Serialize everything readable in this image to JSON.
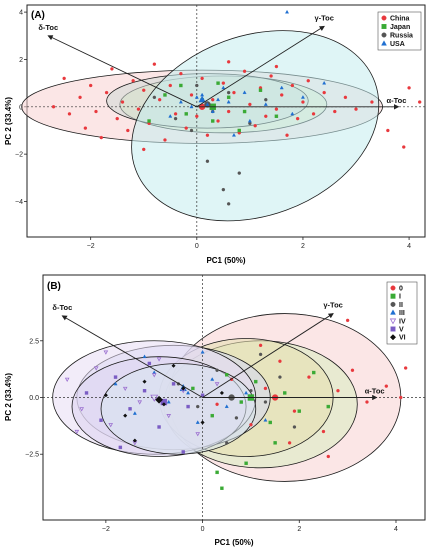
{
  "chart_data": [
    {
      "type": "scatter",
      "panel_label": "(A)",
      "xlabel": "PC1 (50%)",
      "ylabel": "PC 2 (33.4%)",
      "xlim": [
        -3.2,
        4.3
      ],
      "ylim": [
        -5.5,
        4.3
      ],
      "x_ticks": [
        -2,
        0,
        2,
        4
      ],
      "y_ticks": [
        -4,
        -2,
        0,
        2,
        4
      ],
      "x_tick_labels": [
        "−2",
        "0",
        "2",
        "4"
      ],
      "y_tick_labels": [
        "−4",
        "−2",
        "0",
        "2",
        "4"
      ],
      "grid": false,
      "legend_position": "top-right",
      "series": [
        {
          "name": "China",
          "color": "#e8383d",
          "marker": "circle",
          "fill": "#f8d2d2",
          "ellipse": {
            "cx": 0.1,
            "cy": 0.0,
            "rx": 3.4,
            "ry": 1.55,
            "angle": 0
          },
          "center": [
            0.1,
            0.0
          ],
          "points": [
            [
              -2.5,
              1.2
            ],
            [
              -2.4,
              -0.3
            ],
            [
              -2.2,
              0.4
            ],
            [
              -2.1,
              -0.9
            ],
            [
              -2.0,
              0.9
            ],
            [
              -1.9,
              -0.2
            ],
            [
              -1.8,
              -1.3
            ],
            [
              -1.7,
              0.6
            ],
            [
              -1.6,
              1.6
            ],
            [
              -1.5,
              -0.5
            ],
            [
              -1.4,
              0.2
            ],
            [
              -1.3,
              -1.0
            ],
            [
              -1.2,
              1.1
            ],
            [
              -1.1,
              -0.1
            ],
            [
              -1.0,
              0.7
            ],
            [
              -0.9,
              -0.7
            ],
            [
              -0.8,
              1.8
            ],
            [
              -0.7,
              0.3
            ],
            [
              -0.6,
              -1.4
            ],
            [
              -0.5,
              0.9
            ],
            [
              -0.4,
              -0.3
            ],
            [
              -0.3,
              1.4
            ],
            [
              -0.2,
              -0.9
            ],
            [
              -0.1,
              0.5
            ],
            [
              0.0,
              -0.4
            ],
            [
              0.1,
              1.2
            ],
            [
              0.2,
              -1.2
            ],
            [
              0.3,
              0.3
            ],
            [
              0.4,
              -0.6
            ],
            [
              0.5,
              1.0
            ],
            [
              0.6,
              -0.2
            ],
            [
              0.7,
              0.6
            ],
            [
              0.8,
              -1.1
            ],
            [
              0.9,
              1.5
            ],
            [
              1.0,
              0.1
            ],
            [
              1.1,
              -0.8
            ],
            [
              1.2,
              0.8
            ],
            [
              1.3,
              -0.4
            ],
            [
              1.4,
              1.3
            ],
            [
              1.5,
              -0.1
            ],
            [
              1.6,
              0.5
            ],
            [
              1.7,
              -1.2
            ],
            [
              1.8,
              0.9
            ],
            [
              1.9,
              -0.5
            ],
            [
              2.0,
              0.2
            ],
            [
              2.1,
              1.1
            ],
            [
              2.2,
              -0.3
            ],
            [
              2.4,
              0.6
            ],
            [
              2.6,
              -0.2
            ],
            [
              2.8,
              0.4
            ],
            [
              3.0,
              -0.1
            ],
            [
              3.3,
              0.2
            ],
            [
              3.6,
              -1.0
            ],
            [
              4.0,
              0.8
            ],
            [
              4.2,
              0.2
            ],
            [
              3.9,
              -1.7
            ],
            [
              -2.7,
              0.0
            ],
            [
              -1.0,
              -1.8
            ],
            [
              0.6,
              1.9
            ],
            [
              1.5,
              1.7
            ]
          ]
        },
        {
          "name": "Japan",
          "color": "#3aaa35",
          "marker": "square",
          "fill": "#d9ecc0",
          "ellipse": {
            "cx": 0.5,
            "cy": 0.1,
            "rx": 1.95,
            "ry": 1.2,
            "angle": 0
          },
          "center": [
            0.3,
            0.0
          ],
          "points": [
            [
              -0.6,
              0.5
            ],
            [
              -0.2,
              -0.3
            ],
            [
              0.1,
              0.3
            ],
            [
              0.3,
              -0.6
            ],
            [
              0.6,
              0.4
            ],
            [
              0.9,
              -0.2
            ],
            [
              1.2,
              0.7
            ],
            [
              1.5,
              -0.4
            ],
            [
              -0.9,
              -0.6
            ],
            [
              0.4,
              1.0
            ],
            [
              0.8,
              -1.0
            ],
            [
              -0.3,
              0.9
            ]
          ]
        },
        {
          "name": "Russia",
          "color": "#555555",
          "marker": "circle",
          "fill": "#cfd8d5",
          "ellipse": {
            "cx": 0.2,
            "cy": 0.25,
            "rx": 1.9,
            "ry": 1.15,
            "angle": 0
          },
          "center": [
            0.2,
            0.1
          ],
          "points": [
            [
              -0.8,
              0.4
            ],
            [
              -0.4,
              -0.5
            ],
            [
              0.0,
              0.9
            ],
            [
              0.3,
              -0.2
            ],
            [
              0.6,
              0.6
            ],
            [
              1.0,
              -0.7
            ],
            [
              1.3,
              0.3
            ],
            [
              -0.1,
              -1.0
            ],
            [
              0.5,
              -3.5
            ],
            [
              0.2,
              -2.3
            ],
            [
              0.6,
              -4.1
            ],
            [
              0.8,
              -2.8
            ]
          ]
        },
        {
          "name": "USA",
          "color": "#1f6fd1",
          "marker": "triangle",
          "fill": "#c5ecef",
          "ellipse": {
            "cx": 1.1,
            "cy": -0.8,
            "rx": 2.4,
            "ry": 3.8,
            "angle": 20
          },
          "center": [
            0.1,
            0.3
          ],
          "points": [
            [
              -0.3,
              0.2
            ],
            [
              0.0,
              0.4
            ],
            [
              0.2,
              0.1
            ],
            [
              0.4,
              0.3
            ],
            [
              0.1,
              0.5
            ],
            [
              -0.1,
              0.0
            ],
            [
              0.3,
              -0.2
            ],
            [
              0.6,
              0.2
            ],
            [
              0.9,
              0.6
            ],
            [
              1.3,
              0.1
            ],
            [
              1.6,
              0.8
            ],
            [
              2.0,
              0.4
            ],
            [
              2.4,
              1.0
            ],
            [
              1.0,
              -0.6
            ],
            [
              1.8,
              -0.3
            ],
            [
              0.5,
              0.8
            ],
            [
              -0.5,
              -0.4
            ],
            [
              1.7,
              4.0
            ],
            [
              0.7,
              -1.2
            ]
          ]
        }
      ],
      "loadings": [
        {
          "label": "δ-Toc",
          "x": -2.8,
          "y": 3.0
        },
        {
          "label": "γ-Toc",
          "x": 2.4,
          "y": 3.4
        },
        {
          "label": "α-Toc",
          "x": 3.8,
          "y": 0.0
        }
      ]
    },
    {
      "type": "scatter",
      "panel_label": "(B)",
      "xlabel": "PC1 (50%)",
      "ylabel": "PC 2 (33.4%)",
      "xlim": [
        -3.3,
        4.6
      ],
      "ylim": [
        -5.4,
        5.4
      ],
      "x_ticks": [
        -2,
        0,
        2,
        4
      ],
      "y_ticks": [
        -2.5,
        0,
        2.5
      ],
      "x_tick_labels": [
        "−2",
        "0",
        "2",
        "4"
      ],
      "y_tick_labels": [
        "−2.5",
        "0.0",
        "2.5"
      ],
      "grid": false,
      "legend_position": "top-right",
      "series": [
        {
          "name": "0",
          "color": "#e8383d",
          "marker": "circle",
          "fill": "#f8d2d2",
          "ellipse": {
            "cx": 1.7,
            "cy": 0.0,
            "rx": 2.4,
            "ry": 3.7,
            "angle": 0
          },
          "center": [
            1.5,
            0.0
          ],
          "points": [
            [
              0.3,
              -0.3
            ],
            [
              0.6,
              0.8
            ],
            [
              1.0,
              -1.2
            ],
            [
              1.3,
              0.4
            ],
            [
              1.6,
              1.6
            ],
            [
              1.9,
              -0.6
            ],
            [
              2.2,
              0.9
            ],
            [
              2.5,
              -1.5
            ],
            [
              2.8,
              0.3
            ],
            [
              3.1,
              1.2
            ],
            [
              3.4,
              -0.2
            ],
            [
              3.8,
              0.5
            ],
            [
              4.1,
              0.0
            ],
            [
              4.2,
              1.3
            ],
            [
              3.0,
              3.4
            ],
            [
              2.6,
              -2.6
            ],
            [
              1.2,
              2.3
            ],
            [
              1.8,
              -2.0
            ]
          ]
        },
        {
          "name": "I",
          "color": "#3aaa35",
          "marker": "square",
          "fill": "#d9ecc0",
          "ellipse": {
            "cx": 1.2,
            "cy": -0.3,
            "rx": 2.0,
            "ry": 2.8,
            "angle": 0
          },
          "center": [
            1.0,
            0.0
          ],
          "points": [
            [
              -0.2,
              0.4
            ],
            [
              0.2,
              -0.8
            ],
            [
              0.5,
              1.0
            ],
            [
              0.8,
              -0.2
            ],
            [
              1.1,
              0.7
            ],
            [
              1.4,
              -1.1
            ],
            [
              1.7,
              0.2
            ],
            [
              2.0,
              -0.6
            ],
            [
              2.3,
              1.1
            ],
            [
              0.9,
              -2.9
            ],
            [
              0.4,
              -4.0
            ],
            [
              0.3,
              -3.3
            ],
            [
              1.5,
              -2.0
            ],
            [
              2.6,
              -0.4
            ]
          ]
        },
        {
          "name": "II",
          "color": "#555555",
          "marker": "circle",
          "fill": "#e6dfae",
          "ellipse": {
            "cx": 0.9,
            "cy": 0.0,
            "rx": 1.8,
            "ry": 2.6,
            "angle": 0
          },
          "center": [
            0.6,
            0.0
          ],
          "points": [
            [
              -0.5,
              0.6
            ],
            [
              -0.1,
              -0.4
            ],
            [
              0.3,
              1.2
            ],
            [
              0.7,
              -0.9
            ],
            [
              1.0,
              0.3
            ],
            [
              1.3,
              -0.2
            ],
            [
              1.6,
              0.9
            ],
            [
              1.9,
              -1.3
            ],
            [
              0.5,
              -2.0
            ],
            [
              1.2,
              1.9
            ]
          ]
        },
        {
          "name": "III",
          "color": "#1f6fd1",
          "marker": "triangle",
          "fill": "#d3d7f4",
          "ellipse": {
            "cx": -0.6,
            "cy": 0.0,
            "rx": 2.0,
            "ry": 2.3,
            "angle": 0
          },
          "center": [
            -0.4,
            0.4
          ],
          "points": [
            [
              -1.8,
              0.6
            ],
            [
              -1.4,
              -0.7
            ],
            [
              -1.0,
              1.1
            ],
            [
              -0.7,
              -0.2
            ],
            [
              -0.4,
              0.5
            ],
            [
              -0.1,
              -1.1
            ],
            [
              0.2,
              0.8
            ],
            [
              0.5,
              -0.4
            ],
            [
              0.9,
              0.2
            ],
            [
              -1.2,
              1.8
            ],
            [
              0.0,
              2.0
            ],
            [
              1.3,
              -1.0
            ],
            [
              -0.3,
              0.2
            ]
          ]
        },
        {
          "name": "IV",
          "color": "#9b6fd0",
          "marker": "triangle-down",
          "fill": "#e7dcf4",
          "ellipse": {
            "cx": -1.0,
            "cy": 0.0,
            "rx": 2.1,
            "ry": 2.5,
            "angle": 0
          },
          "center": [
            -1.0,
            0.0
          ],
          "points": [
            [
              -2.8,
              0.8
            ],
            [
              -2.5,
              -0.5
            ],
            [
              -2.2,
              1.3
            ],
            [
              -1.9,
              -1.2
            ],
            [
              -1.6,
              0.4
            ],
            [
              -1.3,
              -0.2
            ],
            [
              -1.0,
              1.0
            ],
            [
              -0.7,
              -0.8
            ],
            [
              -0.4,
              0.3
            ],
            [
              -0.1,
              -1.6
            ],
            [
              0.3,
              0.6
            ],
            [
              -2.0,
              2.0
            ],
            [
              -1.4,
              -2.0
            ],
            [
              -0.9,
              1.7
            ],
            [
              -2.6,
              -1.5
            ]
          ]
        },
        {
          "name": "V",
          "color": "#7a5cc4",
          "marker": "square",
          "fill": "#dcd4f0",
          "ellipse": {
            "cx": -0.9,
            "cy": -0.4,
            "rx": 1.8,
            "ry": 2.2,
            "angle": 0
          },
          "center": [
            -0.8,
            -0.2
          ],
          "points": [
            [
              -2.4,
              0.2
            ],
            [
              -2.1,
              -1.0
            ],
            [
              -1.8,
              0.9
            ],
            [
              -1.5,
              -0.5
            ],
            [
              -1.2,
              0.3
            ],
            [
              -0.9,
              -1.3
            ],
            [
              -0.6,
              0.6
            ],
            [
              -0.3,
              -0.4
            ],
            [
              0.0,
              0.1
            ],
            [
              -1.7,
              -2.2
            ],
            [
              -1.1,
              1.5
            ],
            [
              -0.4,
              -2.4
            ]
          ]
        },
        {
          "name": "VI",
          "color": "#111111",
          "marker": "diamond",
          "fill": "#d8e6ee",
          "ellipse": {
            "cx": -0.5,
            "cy": -0.5,
            "rx": 1.6,
            "ry": 2.0,
            "angle": 0
          },
          "center": [
            -0.9,
            -0.1
          ],
          "points": [
            [
              -2.0,
              0.1
            ],
            [
              -1.6,
              -0.8
            ],
            [
              -1.2,
              0.7
            ],
            [
              -0.8,
              -0.3
            ],
            [
              -0.4,
              0.4
            ],
            [
              0.0,
              -1.1
            ],
            [
              0.4,
              0.2
            ],
            [
              -1.4,
              -1.9
            ],
            [
              -0.6,
              1.4
            ]
          ]
        }
      ],
      "loadings": [
        {
          "label": "δ-Toc",
          "x": -2.9,
          "y": 3.6
        },
        {
          "label": "γ-Toc",
          "x": 2.7,
          "y": 3.7
        },
        {
          "label": "α-Toc",
          "x": 3.6,
          "y": 0.0
        }
      ]
    }
  ]
}
